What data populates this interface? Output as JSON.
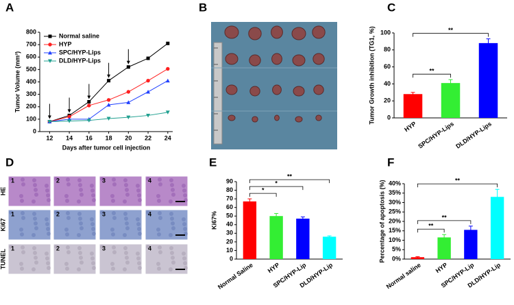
{
  "chart_data": [
    {
      "type": "line",
      "panel": "A",
      "x": [
        12,
        14,
        16,
        18,
        20,
        22,
        24
      ],
      "xlim": [
        11,
        24.5
      ],
      "xticks": [
        12,
        14,
        16,
        18,
        20,
        22,
        24
      ],
      "ylim": [
        0,
        800
      ],
      "yticks": [
        0,
        100,
        200,
        300,
        400,
        500,
        600,
        700,
        800
      ],
      "x_label": "Days after tumor cell injection",
      "y_label": "Tumor Volume (mm³)",
      "arrows_x": [
        12,
        14,
        16,
        18,
        20
      ],
      "series": [
        {
          "name": "Normal saline",
          "color": "#000000",
          "marker": "square",
          "values": [
            80,
            130,
            240,
            410,
            520,
            590,
            710
          ]
        },
        {
          "name": "HYP",
          "color": "#ff2020",
          "marker": "circle",
          "values": [
            80,
            120,
            210,
            255,
            320,
            410,
            505
          ]
        },
        {
          "name": "SPC/HYP-Lips",
          "color": "#2040ff",
          "marker": "triangle-up",
          "values": [
            80,
            100,
            100,
            215,
            235,
            320,
            410
          ]
        },
        {
          "name": "DLD/HYP-Lips",
          "color": "#20a090",
          "marker": "triangle-down",
          "values": [
            80,
            85,
            90,
            105,
            115,
            130,
            155
          ]
        }
      ]
    },
    {
      "type": "bar",
      "panel": "C",
      "categories": [
        "HYP",
        "SPC/HYP-Lips",
        "DLD/HYP-Lips"
      ],
      "values": [
        28,
        41,
        88
      ],
      "errors": [
        2,
        4,
        5
      ],
      "colors": [
        "#ff0000",
        "#33ee33",
        "#0000ff"
      ],
      "ylim": [
        0,
        100
      ],
      "yticks": [
        0,
        20,
        40,
        60,
        80,
        100
      ],
      "y_label": "Tumor Growth inhibition (TG1, %)",
      "significance": [
        {
          "from": 0,
          "to": 1,
          "label": "**"
        },
        {
          "from": 0,
          "to": 2,
          "label": "**"
        }
      ]
    },
    {
      "type": "bar",
      "panel": "E",
      "categories": [
        "Normal Saline",
        "HYP",
        "SPC/HYP-Lip",
        "DLD/HYP-Lip"
      ],
      "values": [
        67,
        50,
        47,
        26
      ],
      "errors": [
        3,
        3,
        2,
        1
      ],
      "colors": [
        "#ff0000",
        "#33ee33",
        "#0000ff",
        "#00ffff"
      ],
      "ylim": [
        0,
        90
      ],
      "yticks": [
        0,
        10,
        20,
        30,
        40,
        50,
        60,
        70,
        80,
        90
      ],
      "y_label": "Ki67%",
      "significance": [
        {
          "from": 0,
          "to": 1,
          "label": "*"
        },
        {
          "from": 0,
          "to": 2,
          "label": "*"
        },
        {
          "from": 0,
          "to": 3,
          "label": "**"
        }
      ]
    },
    {
      "type": "bar",
      "panel": "F",
      "categories": [
        "Normal saline",
        "HYP",
        "SPC/HYP-Lip",
        "DLD/HYP-Lip"
      ],
      "values": [
        1,
        11.5,
        15.5,
        33
      ],
      "errors": [
        0.3,
        1.5,
        2,
        4
      ],
      "colors": [
        "#ff0000",
        "#33ee33",
        "#0000ff",
        "#00ffff"
      ],
      "ylim": [
        0,
        40
      ],
      "yticks": [
        {
          "value": 0,
          "label": "0%"
        },
        {
          "value": 5,
          "label": "5%"
        },
        {
          "value": 10,
          "label": "10%"
        },
        {
          "value": 15,
          "label": "15%"
        },
        {
          "value": 20,
          "label": "20%"
        },
        {
          "value": 25,
          "label": "25%"
        },
        {
          "value": 30,
          "label": "30%"
        },
        {
          "value": 35,
          "label": "35%"
        },
        {
          "value": 40,
          "label": "40%"
        }
      ],
      "y_label": "Percentage of apoptosis (%)",
      "significance": [
        {
          "from": 0,
          "to": 1,
          "label": "**"
        },
        {
          "from": 0,
          "to": 2,
          "label": "**"
        },
        {
          "from": 0,
          "to": 3,
          "label": "**"
        }
      ]
    }
  ],
  "images": {
    "photo": {
      "panel": "B"
    },
    "histology": {
      "panel": "D",
      "rows": [
        "HE",
        "Ki67",
        "TUNEL"
      ],
      "columns": [
        "1",
        "2",
        "3",
        "4"
      ]
    }
  }
}
